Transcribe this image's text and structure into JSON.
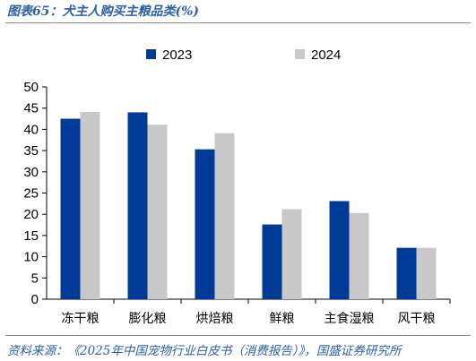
{
  "header": {
    "figure_title": "图表65：犬主人购买主粮品类(%)"
  },
  "footer": {
    "source_note": "资料来源：《2025年中国宠物行业白皮书（消费报告）》，国盛证券研究所"
  },
  "chart_data": {
    "type": "bar",
    "title": "犬主人购买主粮品类(%)",
    "xlabel": "",
    "ylabel": "",
    "ylim": [
      0,
      50
    ],
    "yticks": [
      0,
      5,
      10,
      15,
      20,
      25,
      30,
      35,
      40,
      45,
      50
    ],
    "grid": false,
    "legend_position": "top-center",
    "categories": [
      "冻干粮",
      "膨化粮",
      "烘焙粮",
      "鲜粮",
      "主食湿粮",
      "风干粮"
    ],
    "series": [
      {
        "name": "2023",
        "color": "#003a96",
        "values": [
          42.5,
          44.0,
          35.3,
          17.6,
          23.1,
          12.1
        ]
      },
      {
        "name": "2024",
        "color": "#c8c8c8",
        "values": [
          44.1,
          41.1,
          39.1,
          21.2,
          20.3,
          12.1
        ]
      }
    ]
  }
}
